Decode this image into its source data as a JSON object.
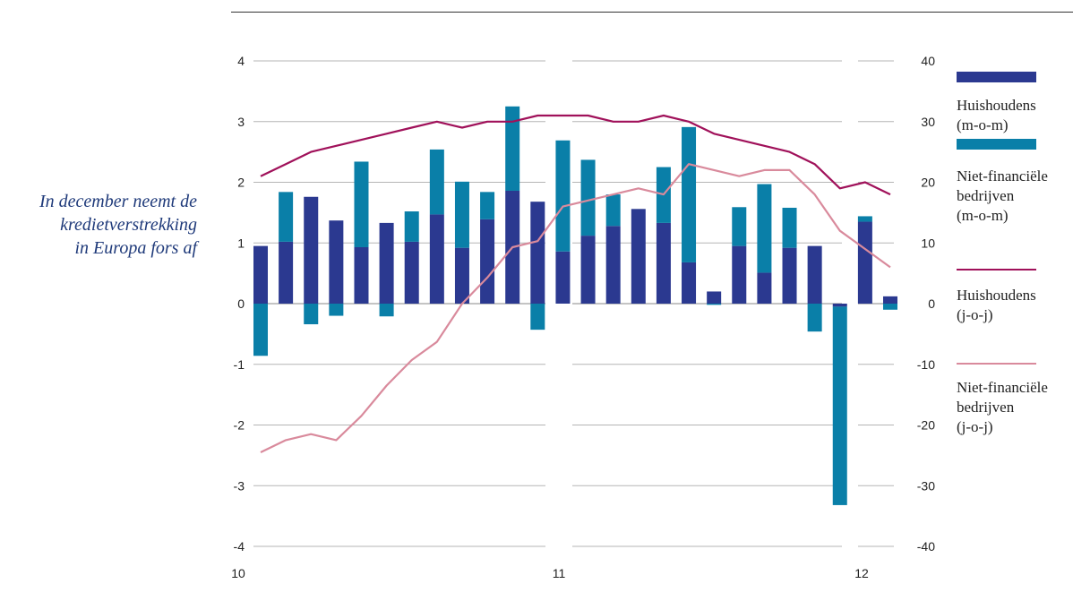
{
  "caption": {
    "lines": [
      "In december neemt de",
      "kredietverstrekking",
      "in Europa fors af"
    ]
  },
  "colors": {
    "households_mom": "#2b3990",
    "nonfin_mom": "#0a7fa8",
    "households_yoy": "#a0115a",
    "nonfin_yoy": "#d98a9c",
    "grid": "#b5b5b5",
    "axis_text": "#222222"
  },
  "chart_data": {
    "type": "bar",
    "stacked": true,
    "x_tick_labels": [
      "10",
      "11",
      "12"
    ],
    "left_axis": {
      "ylim": [
        -4,
        4
      ],
      "ticks": [
        "4",
        "3",
        "2",
        "1",
        "0",
        "-1",
        "-2",
        "-3",
        "-4"
      ]
    },
    "right_axis": {
      "ylim": [
        -40,
        40
      ],
      "ticks": [
        "40",
        "30",
        "20",
        "10",
        "0",
        "-10",
        "-20",
        "-30",
        "-40"
      ]
    },
    "grid": true,
    "legend_position": "right",
    "series": [
      {
        "name": "Huishoudens (m-o-m)",
        "kind": "bar",
        "axis": "left",
        "values": [
          0.95,
          1.02,
          1.76,
          1.37,
          0.93,
          1.33,
          1.02,
          1.47,
          0.92,
          1.39,
          1.86,
          1.68,
          0.86,
          1.12,
          1.28,
          1.56,
          1.33,
          0.68,
          0.2,
          0.95,
          0.51,
          0.92,
          0.95,
          -0.05,
          1.35,
          0.12
        ]
      },
      {
        "name": "Niet-financiële bedrijven (m-o-m)",
        "kind": "bar",
        "axis": "left",
        "values": [
          -0.86,
          0.82,
          -0.34,
          -0.2,
          1.41,
          -0.21,
          0.5,
          1.07,
          1.09,
          0.45,
          1.39,
          -0.43,
          1.83,
          1.25,
          0.52,
          0,
          0.92,
          2.23,
          -0.02,
          0.64,
          1.46,
          0.66,
          -0.46,
          -3.27,
          0.09,
          -0.1
        ]
      },
      {
        "name": "Huishoudens (j-o-j)",
        "kind": "line",
        "axis": "right",
        "values": [
          21,
          23,
          25,
          26,
          27,
          28,
          29,
          30,
          29,
          30,
          30,
          31,
          31,
          31,
          30,
          30,
          31,
          30,
          28,
          27,
          26,
          25,
          23,
          19,
          20,
          18
        ]
      },
      {
        "name": "Niet-financiële bedrijven (j-o-j)",
        "kind": "line",
        "axis": "right",
        "values": [
          -24.5,
          -22.5,
          -21.5,
          -22.5,
          -18.5,
          -13.5,
          -9.3,
          -6.3,
          0,
          4.3,
          9.3,
          10.3,
          16,
          17,
          18,
          19,
          18,
          23,
          22,
          21,
          22,
          22,
          18,
          12,
          9,
          6
        ]
      }
    ]
  },
  "legend": [
    {
      "lines": [
        "Huishoudens",
        "(m-o-m)"
      ]
    },
    {
      "lines": [
        "Niet-financiële",
        "bedrijven",
        "(m-o-m)"
      ]
    },
    {
      "lines": [
        "Huishoudens",
        "(j-o-j)"
      ]
    },
    {
      "lines": [
        "Niet-financiële",
        "bedrijven",
        "(j-o-j)"
      ]
    }
  ]
}
